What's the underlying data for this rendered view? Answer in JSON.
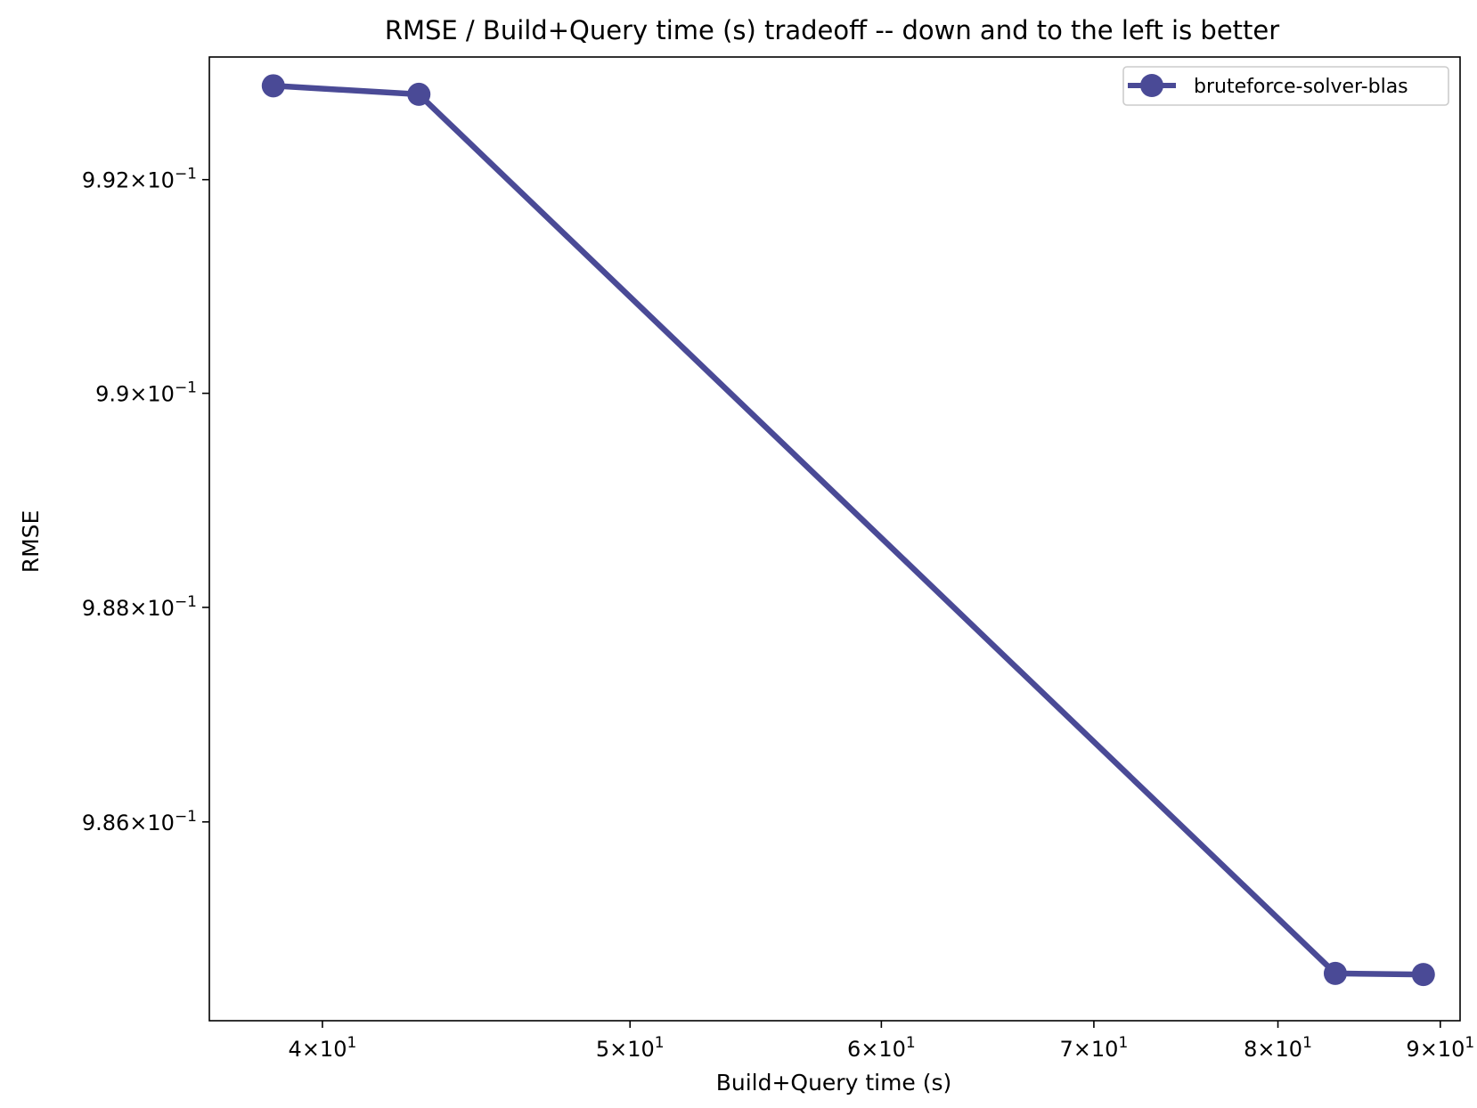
{
  "chart_data": {
    "type": "line",
    "title": "RMSE / Build+Query time (s) tradeoff -- down and to the left is better",
    "xlabel": "Build+Query time (s)",
    "ylabel": "RMSE",
    "xscale": "log",
    "yscale": "log",
    "xlim": [
      36.85,
      91.3
    ],
    "ylim": [
      0.98415,
      0.99315
    ],
    "grid": false,
    "legend_position": "top-right",
    "x_ticks": [
      {
        "value": 40,
        "mantissa": "4",
        "exponent": "1"
      },
      {
        "value": 50,
        "mantissa": "5",
        "exponent": "1"
      },
      {
        "value": 60,
        "mantissa": "6",
        "exponent": "1"
      },
      {
        "value": 70,
        "mantissa": "7",
        "exponent": "1"
      },
      {
        "value": 80,
        "mantissa": "8",
        "exponent": "1"
      },
      {
        "value": 90,
        "mantissa": "9",
        "exponent": "1"
      }
    ],
    "y_ticks": [
      {
        "value": 0.992,
        "mantissa": "9.92",
        "exponent": "−1"
      },
      {
        "value": 0.99,
        "mantissa": "9.9",
        "exponent": "−1"
      },
      {
        "value": 0.988,
        "mantissa": "9.88",
        "exponent": "−1"
      },
      {
        "value": 0.986,
        "mantissa": "9.86",
        "exponent": "−1"
      }
    ],
    "series": [
      {
        "name": "bruteforce-solver-blas",
        "color": "#4a4a96",
        "x": [
          38.6,
          42.9,
          83.4,
          88.9
        ],
        "y": [
          0.99288,
          0.9928,
          0.98459,
          0.98458
        ]
      }
    ]
  }
}
